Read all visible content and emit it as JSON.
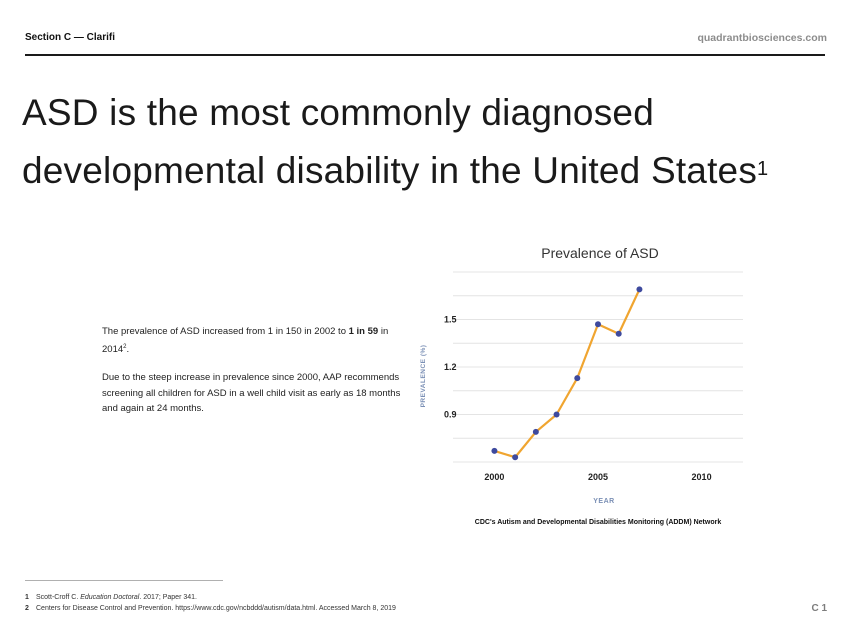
{
  "header": {
    "section_label": "Section C — Clarifi",
    "site": "quadrantbiosciences.com"
  },
  "headline": {
    "line1": "ASD is the most commonly diagnosed",
    "line2": "developmental disability in the United States",
    "footnote_ref": "1"
  },
  "body": {
    "p1_prefix": "The prevalence of ASD increased from 1 in 150 in 2002 to ",
    "p1_bold": "1 in 59",
    "p1_suffix": " in 2014",
    "p1_ref": "2",
    "p1_end": ".",
    "p2": "Due to the steep increase in prevalence since 2000, AAP recommends screening all children for ASD in a well child visit as early as 18 months and again at 24 months."
  },
  "chart_data": {
    "type": "line",
    "title": "Prevalence of ASD",
    "xlabel": "YEAR",
    "ylabel": "PREVALENCE (%)",
    "source": "CDC's Autism and Developmental Disabilities Monitoring (ADDM) Network",
    "x_ticks": [
      "2000",
      "2005",
      "2010"
    ],
    "x_tick_values": [
      2000,
      2005,
      2010
    ],
    "y_ticks": [
      "0.9",
      "1.2",
      "1.5"
    ],
    "y_tick_values": [
      0.9,
      1.2,
      1.5
    ],
    "xlim": [
      1998,
      2012
    ],
    "ylim": [
      0.6,
      1.8
    ],
    "grid": true,
    "line_color": "#f0a530",
    "marker_color": "#3e4a9e",
    "points": [
      {
        "x": 2000,
        "y": 0.67
      },
      {
        "x": 2001,
        "y": 0.63
      },
      {
        "x": 2002,
        "y": 0.79
      },
      {
        "x": 2003,
        "y": 0.9
      },
      {
        "x": 2004,
        "y": 1.13
      },
      {
        "x": 2005,
        "y": 1.47
      },
      {
        "x": 2006,
        "y": 1.41
      },
      {
        "x": 2007,
        "y": 1.69
      }
    ]
  },
  "footnotes": [
    {
      "num": "1",
      "pre": "Scott-Croff C. ",
      "italic": "Education Doctoral",
      "post": ". 2017; Paper 341."
    },
    {
      "num": "2",
      "pre": "Centers for Disease Control and Prevention. https://www.cdc.gov/ncbddd/autism/data.html. Accessed March 8, 2019",
      "italic": "",
      "post": ""
    }
  ],
  "page_number": "C 1"
}
